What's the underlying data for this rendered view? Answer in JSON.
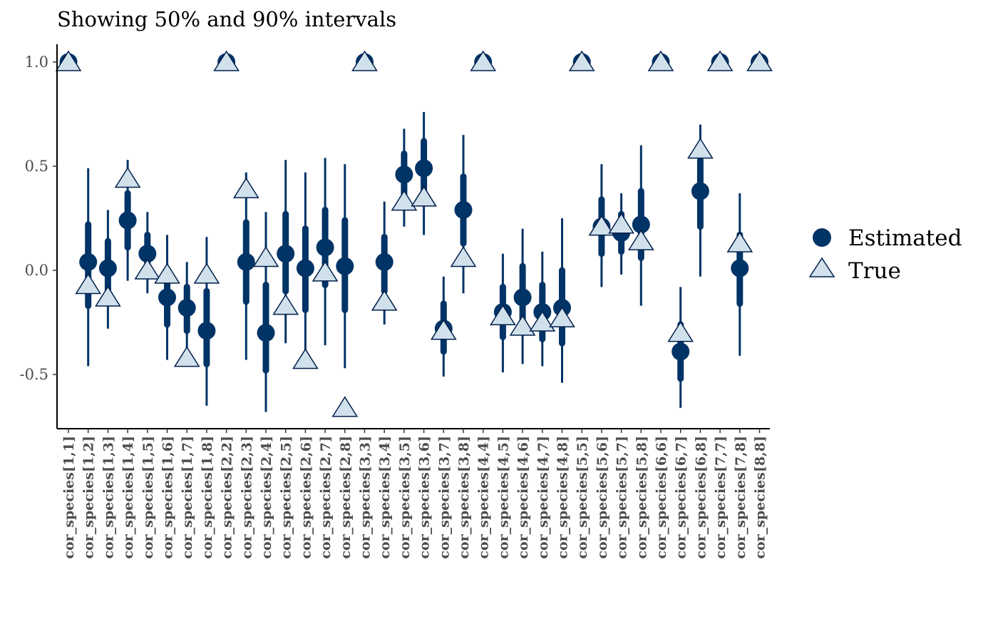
{
  "chart_data": {
    "type": "scatter",
    "title": "Showing 50% and 90% intervals",
    "xlabel": "",
    "ylabel": "",
    "ylim": [
      -0.77,
      1.08
    ],
    "yticks": [
      1.0,
      0.5,
      0.0,
      -0.5
    ],
    "ytick_labels": [
      "1.0",
      "0.5",
      "0.0",
      "-0.5"
    ],
    "grid": false,
    "legend_position": "right",
    "colors": {
      "estimated": "#003366",
      "true_fill": "#d1e1ec",
      "true_stroke": "#011f4b"
    },
    "categories": [
      "cor_species[1,1]",
      "cor_species[1,2]",
      "cor_species[1,3]",
      "cor_species[1,4]",
      "cor_species[1,5]",
      "cor_species[1,6]",
      "cor_species[1,7]",
      "cor_species[1,8]",
      "cor_species[2,2]",
      "cor_species[2,3]",
      "cor_species[2,4]",
      "cor_species[2,5]",
      "cor_species[2,6]",
      "cor_species[2,7]",
      "cor_species[2,8]",
      "cor_species[3,3]",
      "cor_species[3,4]",
      "cor_species[3,5]",
      "cor_species[3,6]",
      "cor_species[3,7]",
      "cor_species[3,8]",
      "cor_species[4,4]",
      "cor_species[4,5]",
      "cor_species[4,6]",
      "cor_species[4,7]",
      "cor_species[4,8]",
      "cor_species[5,5]",
      "cor_species[5,6]",
      "cor_species[5,7]",
      "cor_species[5,8]",
      "cor_species[6,6]",
      "cor_species[6,7]",
      "cor_species[6,8]",
      "cor_species[7,7]",
      "cor_species[7,8]",
      "cor_species[8,8]"
    ],
    "series": [
      {
        "name": "Estimated",
        "values": [
          1.0,
          0.04,
          0.01,
          0.24,
          0.08,
          -0.13,
          -0.18,
          -0.29,
          1.0,
          0.04,
          -0.3,
          0.08,
          0.01,
          0.11,
          0.02,
          1.0,
          0.04,
          0.46,
          0.49,
          -0.28,
          0.29,
          1.0,
          -0.2,
          -0.13,
          -0.2,
          -0.18,
          1.0,
          0.21,
          0.18,
          0.22,
          1.0,
          -0.39,
          0.38,
          1.0,
          0.01,
          1.0
        ],
        "inner_low": [
          1.0,
          -0.17,
          -0.11,
          0.11,
          -0.01,
          -0.26,
          -0.29,
          -0.45,
          1.0,
          -0.15,
          -0.48,
          -0.1,
          -0.19,
          -0.07,
          -0.19,
          1.0,
          -0.1,
          0.32,
          0.34,
          -0.39,
          0.13,
          1.0,
          -0.32,
          -0.26,
          -0.33,
          -0.35,
          1.0,
          0.08,
          0.09,
          0.06,
          1.0,
          -0.52,
          0.21,
          1.0,
          -0.16,
          1.0
        ],
        "inner_high": [
          1.0,
          0.22,
          0.14,
          0.37,
          0.17,
          -0.03,
          -0.08,
          -0.1,
          1.0,
          0.23,
          -0.07,
          0.27,
          0.2,
          0.29,
          0.24,
          1.0,
          0.16,
          0.56,
          0.62,
          -0.16,
          0.45,
          1.0,
          -0.08,
          0.02,
          -0.07,
          0.0,
          1.0,
          0.34,
          0.27,
          0.38,
          1.0,
          -0.26,
          0.53,
          1.0,
          0.17,
          1.0
        ],
        "outer_low": [
          1.0,
          -0.46,
          -0.28,
          -0.05,
          -0.11,
          -0.43,
          -0.43,
          -0.65,
          1.0,
          -0.43,
          -0.68,
          -0.35,
          -0.42,
          -0.36,
          -0.47,
          1.0,
          -0.26,
          0.21,
          0.17,
          -0.51,
          -0.11,
          1.0,
          -0.49,
          -0.45,
          -0.46,
          -0.54,
          1.0,
          -0.08,
          -0.02,
          -0.17,
          1.0,
          -0.66,
          -0.03,
          1.0,
          -0.41,
          1.0
        ],
        "outer_high": [
          1.0,
          0.49,
          0.29,
          0.53,
          0.28,
          0.17,
          0.04,
          0.16,
          1.0,
          0.47,
          0.28,
          0.53,
          0.47,
          0.54,
          0.51,
          1.0,
          0.33,
          0.68,
          0.76,
          -0.03,
          0.65,
          1.0,
          0.08,
          0.2,
          0.09,
          0.25,
          1.0,
          0.51,
          0.37,
          0.6,
          1.0,
          -0.08,
          0.7,
          1.0,
          0.37,
          1.0
        ]
      },
      {
        "name": "True",
        "values": [
          1.0,
          -0.07,
          -0.13,
          0.44,
          0.0,
          -0.02,
          -0.42,
          -0.02,
          1.0,
          0.39,
          0.06,
          -0.17,
          -0.43,
          -0.01,
          -0.66,
          1.0,
          -0.15,
          0.33,
          0.35,
          -0.29,
          0.06,
          1.0,
          -0.22,
          -0.27,
          -0.25,
          -0.23,
          1.0,
          0.21,
          0.22,
          0.14,
          1.0,
          -0.3,
          0.58,
          1.0,
          0.13,
          1.0
        ]
      }
    ]
  }
}
